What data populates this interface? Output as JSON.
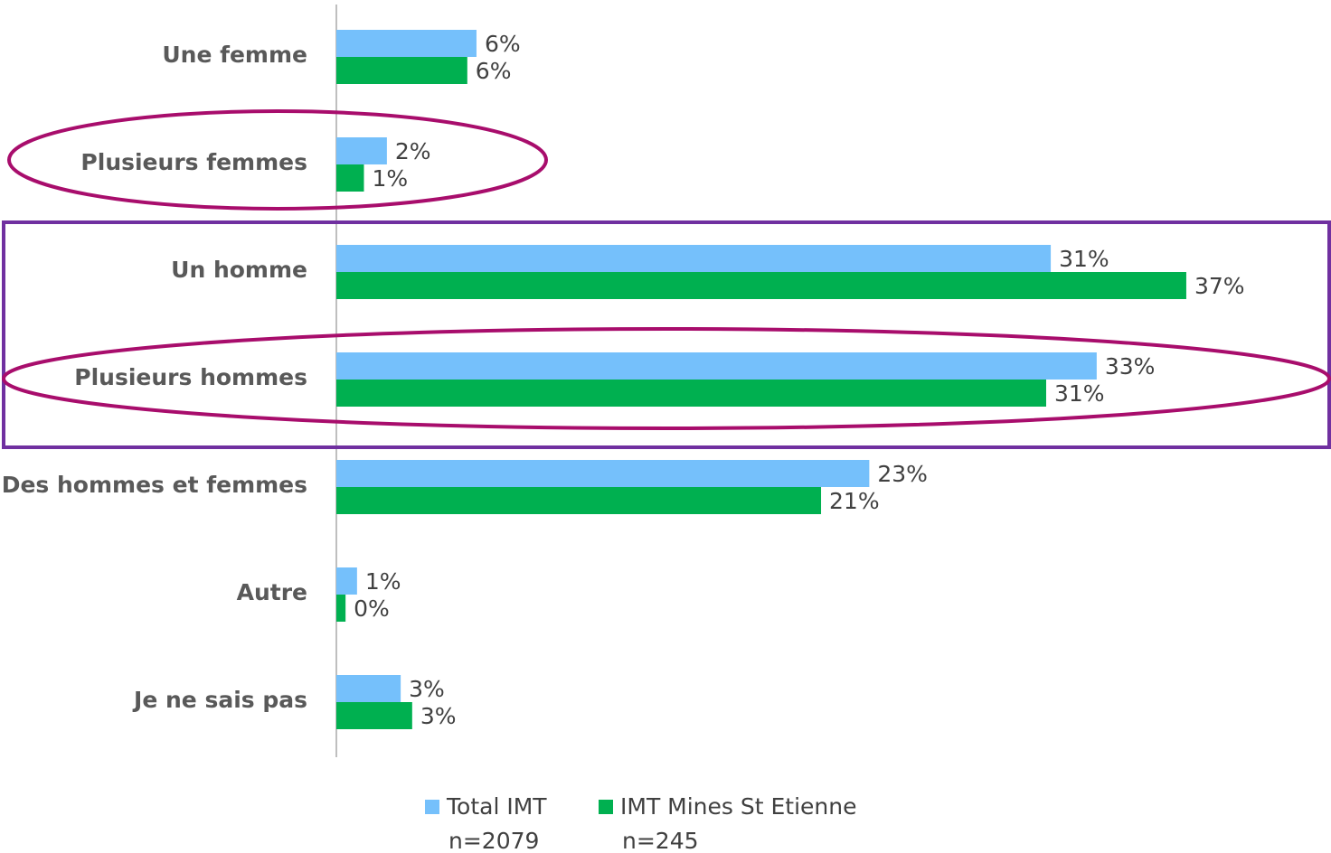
{
  "chart_data": {
    "type": "bar",
    "orientation": "horizontal",
    "categories": [
      "Une femme",
      "Plusieurs femmes",
      "Un homme",
      "Plusieurs hommes",
      "Des hommes et femmes",
      "Autre",
      "Je ne sais pas"
    ],
    "series": [
      {
        "name": "Total IMT",
        "n": "n=2079",
        "color": "#75c0fb",
        "values": [
          6.1,
          2.2,
          31.1,
          33.1,
          23.2,
          0.9,
          2.8
        ],
        "value_labels": [
          "6%",
          "2%",
          "31%",
          "33%",
          "23%",
          "1%",
          "3%"
        ]
      },
      {
        "name": "IMT Mines St Etienne",
        "n": "n=245",
        "color": "#00b050",
        "values": [
          5.7,
          1.2,
          37.0,
          30.9,
          21.1,
          0.4,
          3.3
        ],
        "value_labels": [
          "6%",
          "1%",
          "37%",
          "31%",
          "21%",
          "0%",
          "3%"
        ]
      }
    ],
    "xlim": [
      0,
      43.3
    ],
    "legend": "bottom"
  }
}
